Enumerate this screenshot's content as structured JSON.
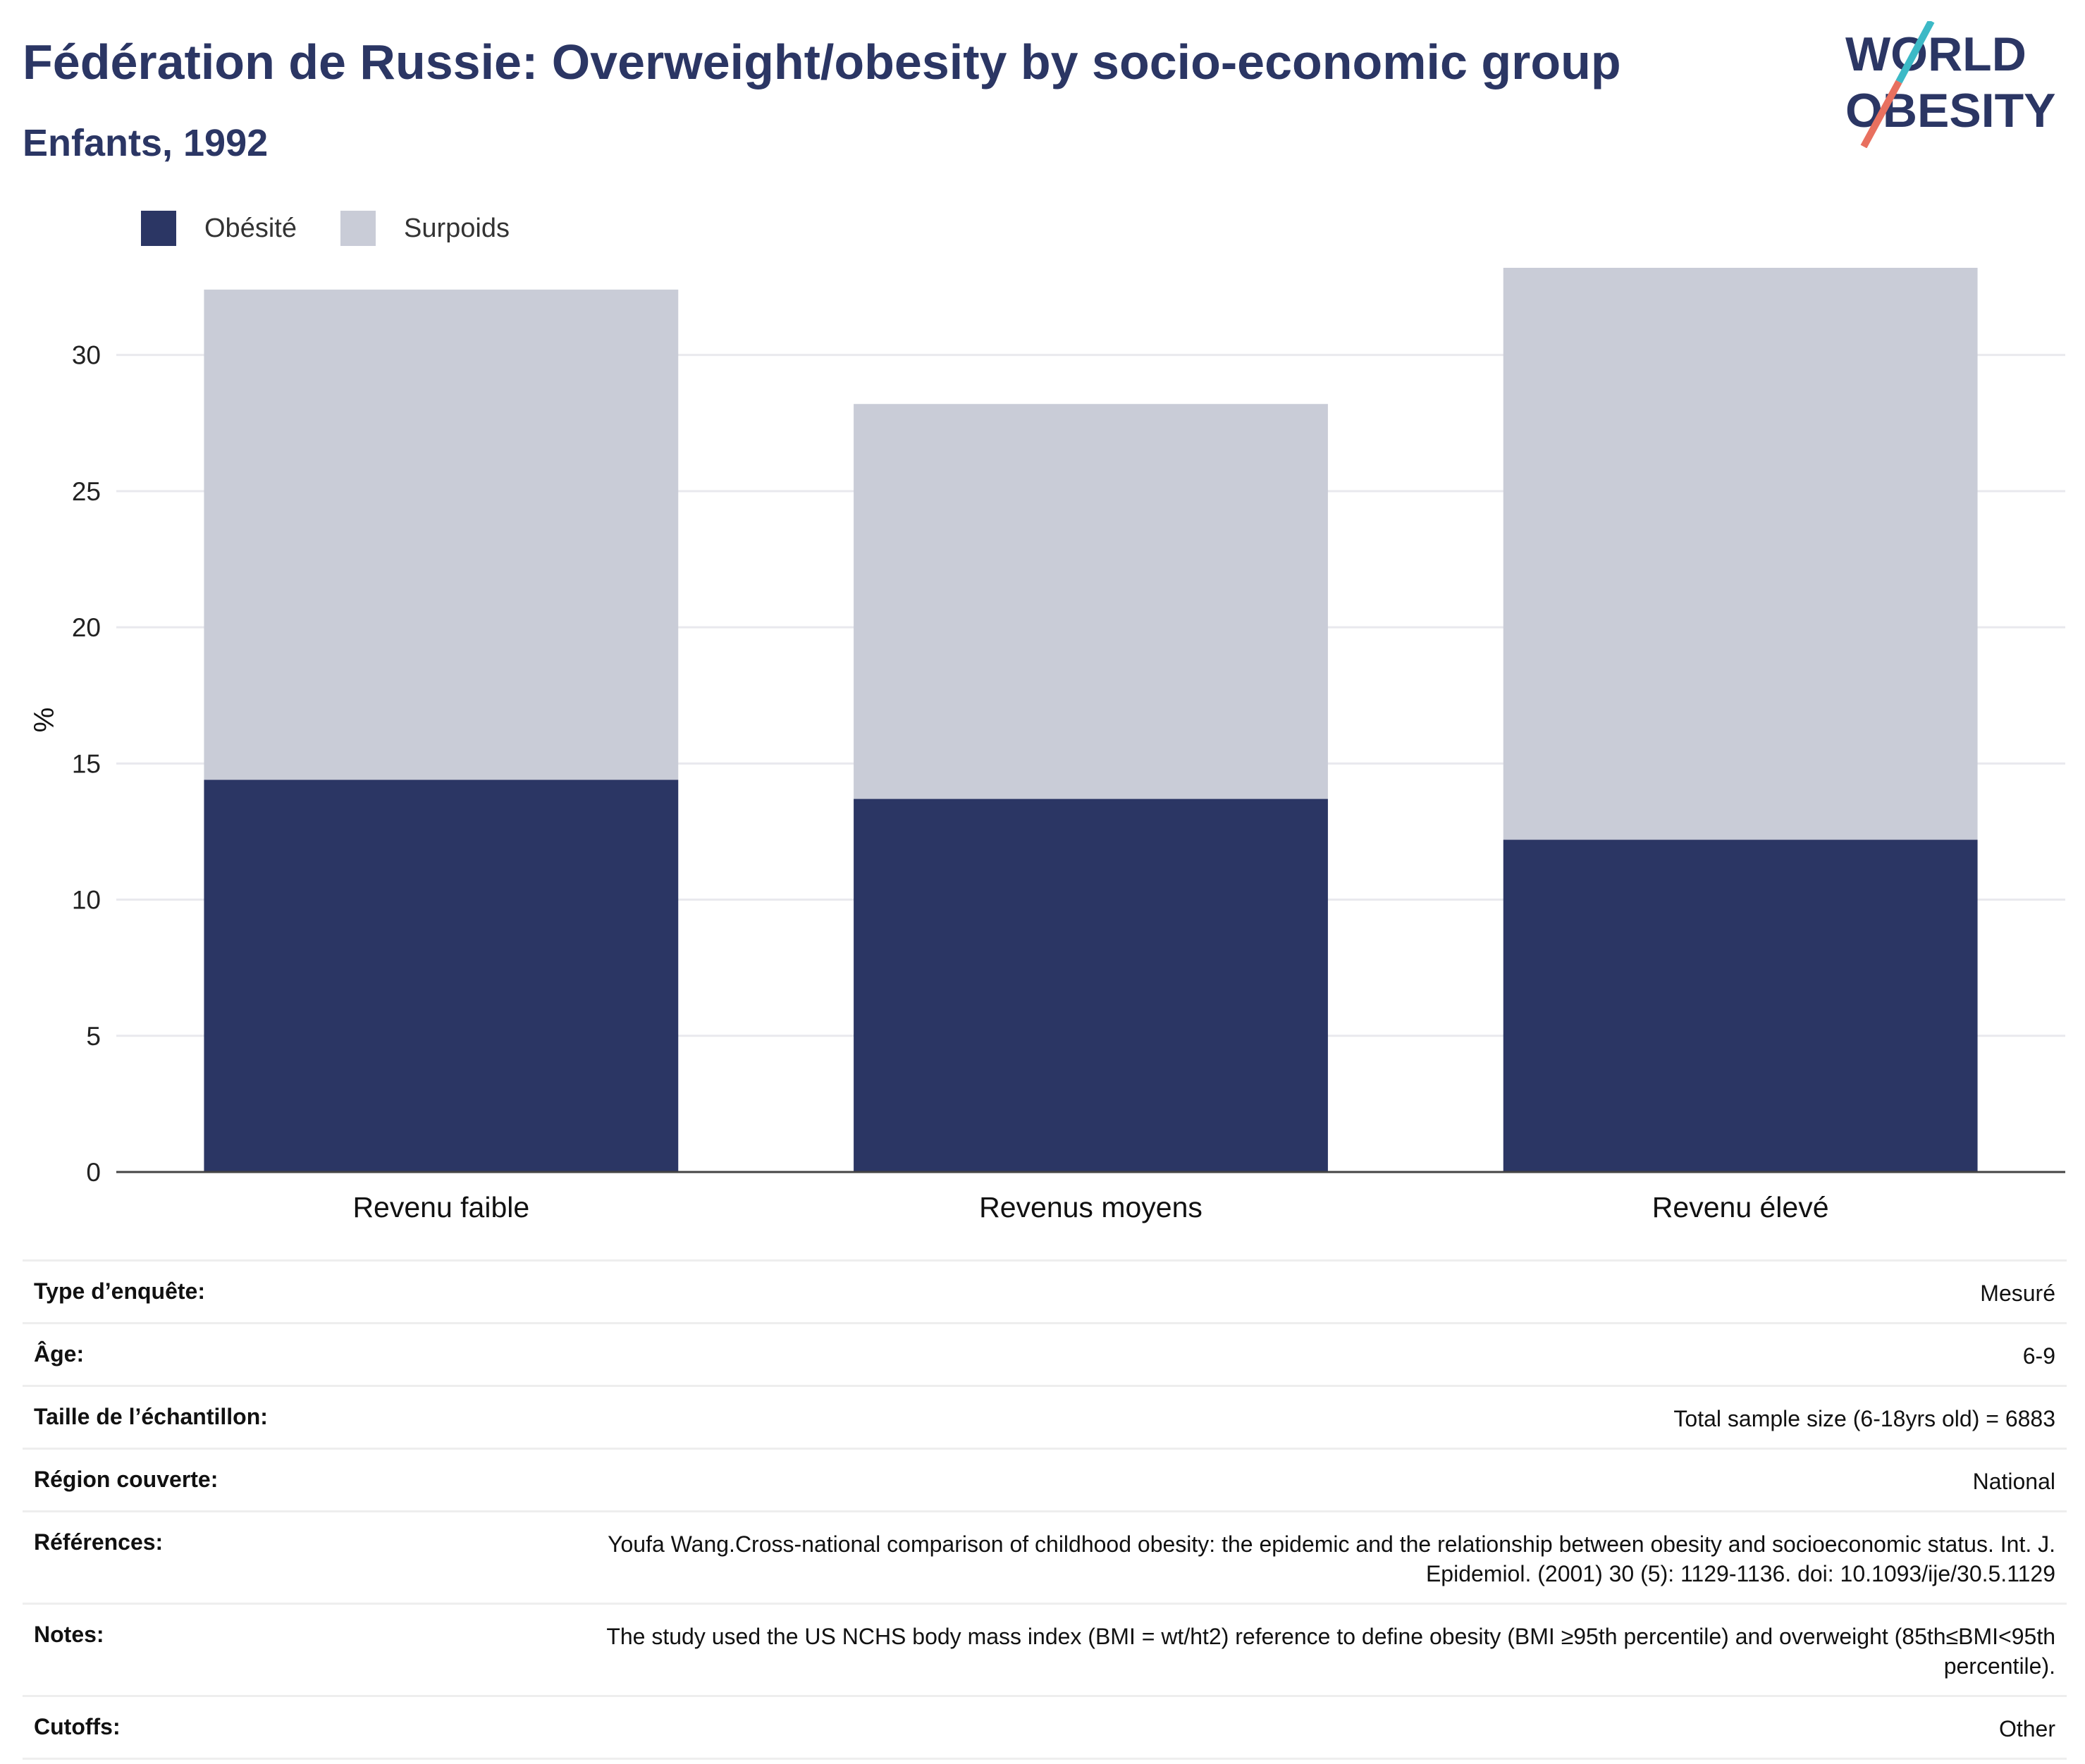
{
  "header": {
    "title": "Fédération de Russie: Overweight/obesity by socio-economic group",
    "subtitle": "Enfants, 1992"
  },
  "logo": {
    "line1": "WORLD",
    "line2": "OBESITY",
    "colors": {
      "text": "#2b3664",
      "slash_top": "#3cb9c6",
      "slash_bottom": "#e8705f"
    }
  },
  "legend": {
    "items": [
      {
        "label": "Obésité",
        "color": "#2b3664"
      },
      {
        "label": "Surpoids",
        "color": "#c9ccd7"
      }
    ]
  },
  "chart_data": {
    "type": "bar",
    "stacked": true,
    "categories": [
      "Revenu faible",
      "Revenus moyens",
      "Revenu élevé"
    ],
    "series": [
      {
        "name": "Obésité",
        "values": [
          14.4,
          13.7,
          12.2
        ],
        "color": "#2b3664"
      },
      {
        "name": "Surpoids",
        "values": [
          18.0,
          14.5,
          21.0
        ],
        "color": "#c9ccd7"
      }
    ],
    "ylabel": "%",
    "ylim": [
      0,
      33.2
    ],
    "yticks": [
      0,
      5,
      10,
      15,
      20,
      25,
      30
    ],
    "grid": true,
    "legend_position": "top-left"
  },
  "info": [
    {
      "key": "Type d’enquête:",
      "value": "Mesuré"
    },
    {
      "key": "Âge:",
      "value": "6-9"
    },
    {
      "key": "Taille de l’échantillon:",
      "value": "Total sample size (6-18yrs old) = 6883"
    },
    {
      "key": "Région couverte:",
      "value": "National"
    },
    {
      "key": "Références:",
      "value": "Youfa Wang.Cross-national comparison of childhood obesity: the epidemic and the relationship between obesity and socioeconomic status. Int. J. Epidemiol. (2001) 30 (5): 1129-1136. doi: 10.1093/ije/30.5.1129"
    },
    {
      "key": "Notes:",
      "value": "The study used the US NCHS body mass index (BMI = wt/ht2) reference to define obesity (BMI ≥95th percentile) and overweight (85th≤BMI<95th percentile)."
    },
    {
      "key": "Cutoffs:",
      "value": "Other"
    }
  ]
}
